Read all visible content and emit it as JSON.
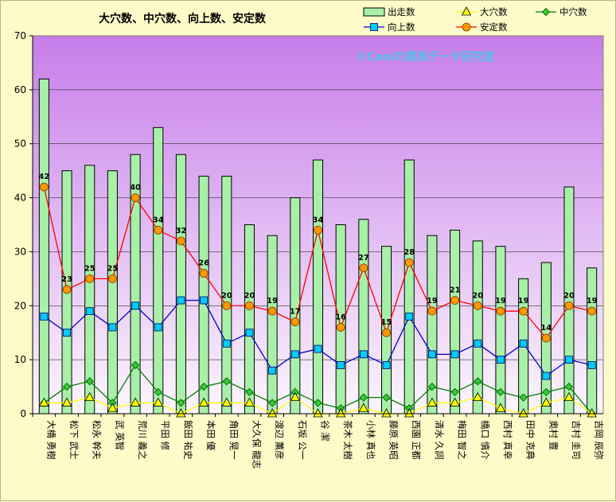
{
  "chart_data": {
    "type": "bar",
    "title": "大穴数、中穴数、向上数、安定数",
    "watermark": "©Caniの競馬データ研究室",
    "ylim": [
      0,
      70
    ],
    "yticks": [
      0,
      10,
      20,
      30,
      40,
      50,
      60,
      70
    ],
    "legend_position": "top-right",
    "grid": true,
    "categories": [
      "大橋 勇樹",
      "松下 武士",
      "松永 幹夫",
      "武 英智",
      "荒川 義之",
      "平田 修",
      "飯田 祐史",
      "本田 優",
      "角田 晃一",
      "大久保 龍志",
      "渡辺 薫彦",
      "石坂 公一",
      "谷 潔",
      "茶木 太樹",
      "小林 真也",
      "藤原 英昭",
      "西園 正都",
      "清水 久詞",
      "梅田 智之",
      "橋口 慎介",
      "西村 真幸",
      "田中 克典",
      "奥村 豊",
      "吉村 圭司",
      "吉岡 辰弥"
    ],
    "series": [
      {
        "name": "出走数",
        "kind": "bar",
        "color": "#a8f0a8",
        "values": [
          62,
          45,
          46,
          45,
          48,
          53,
          48,
          44,
          44,
          35,
          33,
          40,
          47,
          35,
          36,
          31,
          47,
          33,
          34,
          32,
          31,
          25,
          28,
          42,
          27
        ]
      },
      {
        "name": "大穴数",
        "kind": "line",
        "color": "#ffff00",
        "values": [
          2,
          2,
          3,
          1,
          2,
          2,
          0,
          2,
          2,
          2,
          0,
          3,
          0,
          0,
          1,
          0,
          0,
          2,
          2,
          3,
          1,
          0,
          2,
          3,
          0
        ]
      },
      {
        "name": "中穴数",
        "kind": "line",
        "color": "#008000",
        "values": [
          2,
          5,
          6,
          2,
          9,
          4,
          2,
          5,
          6,
          4,
          2,
          4,
          2,
          1,
          3,
          3,
          1,
          5,
          4,
          6,
          4,
          3,
          4,
          5,
          0
        ]
      },
      {
        "name": "向上数",
        "kind": "line",
        "color": "#0000cc",
        "values": [
          18,
          15,
          19,
          16,
          20,
          16,
          21,
          21,
          13,
          15,
          8,
          11,
          12,
          9,
          11,
          9,
          18,
          11,
          11,
          13,
          10,
          13,
          7,
          10,
          9
        ]
      },
      {
        "name": "安定数",
        "kind": "line",
        "color": "#ff0000",
        "values": [
          42,
          23,
          25,
          25,
          40,
          34,
          32,
          26,
          20,
          20,
          19,
          17,
          34,
          16,
          27,
          15,
          28,
          19,
          21,
          20,
          19,
          19,
          14,
          20,
          19
        ]
      }
    ]
  }
}
